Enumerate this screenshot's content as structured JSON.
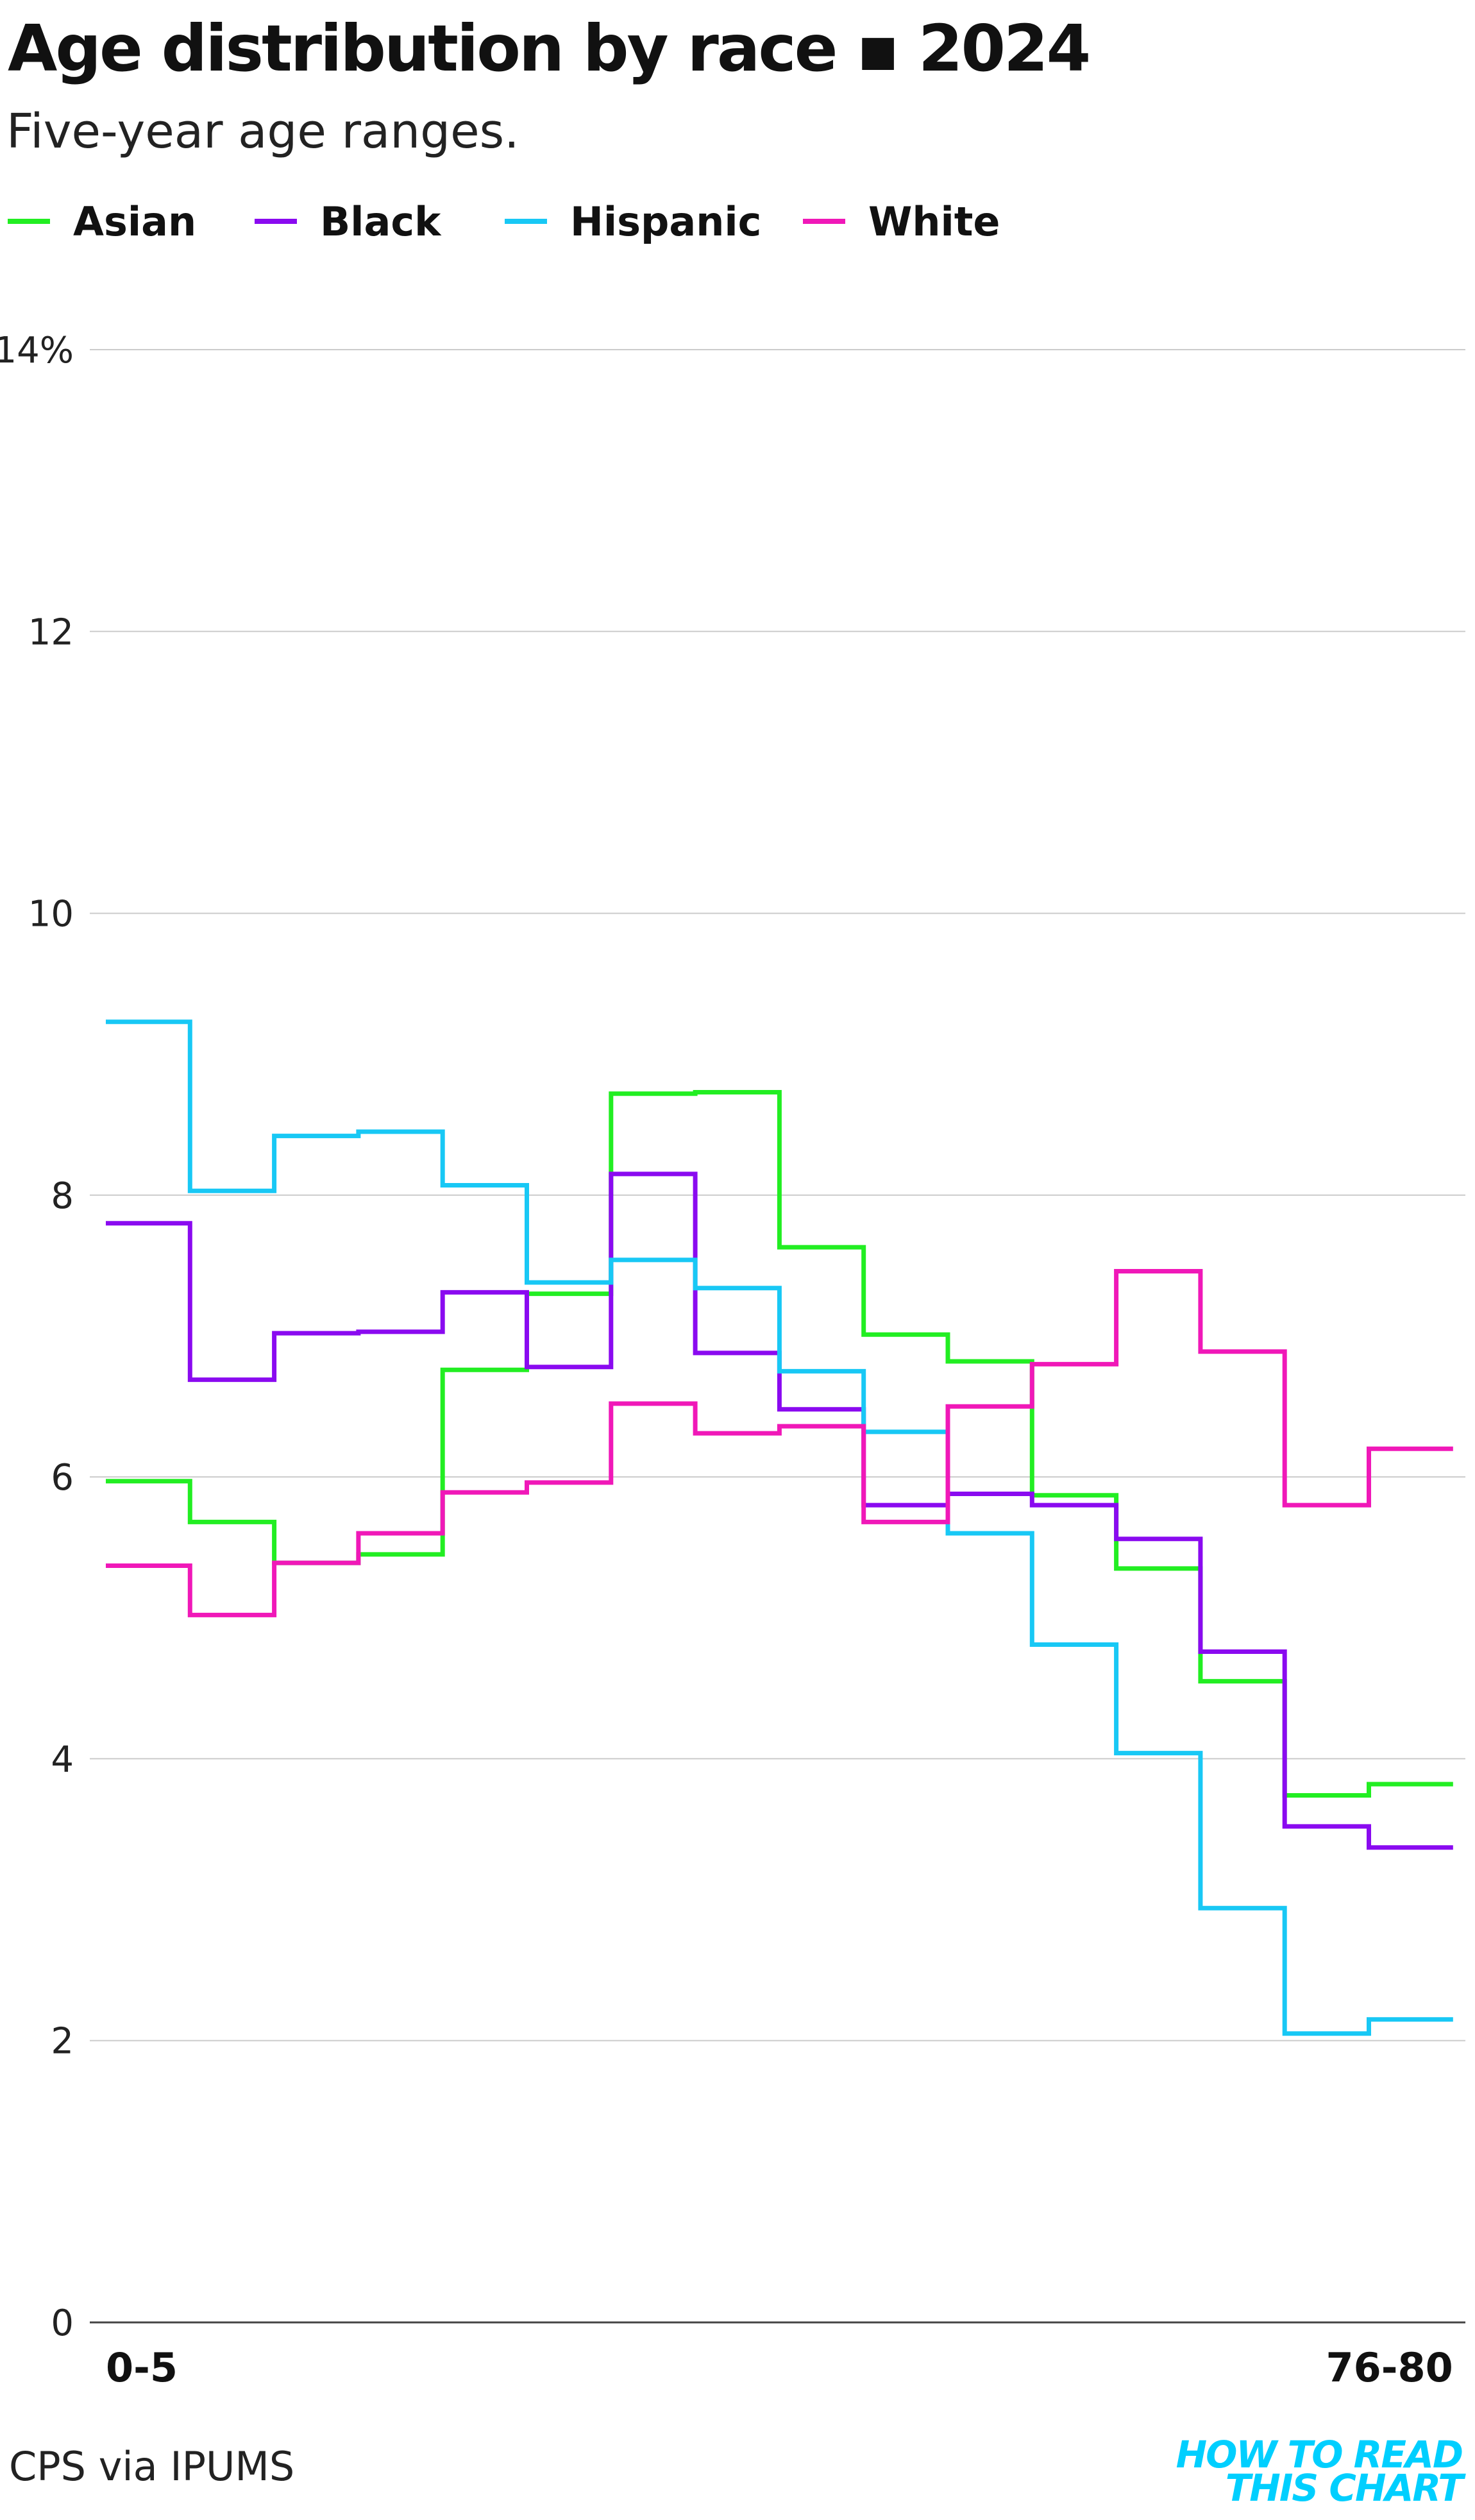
{
  "header": {
    "title": "Age distribution by race",
    "title_separator": "▪",
    "year": "2024",
    "subtitle": "Five-year age ranges."
  },
  "footer": {
    "source": "CPS via IPUMS",
    "brand_line1": "HOW TO READ",
    "brand_line2": "THIS CHART"
  },
  "chart_data": {
    "type": "line",
    "step": true,
    "title": "Age distribution by race ▪ 2024",
    "subtitle": "Five-year age ranges.",
    "ylim": [
      0,
      14
    ],
    "y_ticks": [
      0,
      2,
      4,
      6,
      8,
      10,
      12,
      14
    ],
    "y_tick_labels": [
      "0",
      "2",
      "4",
      "6",
      "8",
      "10",
      "12",
      "14%"
    ],
    "x_tick_labels": [
      "0-5",
      "76-80"
    ],
    "grid": true,
    "legend_position": "top-left",
    "series": [
      {
        "name": "Asian",
        "color": "#22ee22",
        "values": [
          5.97,
          5.68,
          5.39,
          5.45,
          6.76,
          7.3,
          8.72,
          8.73,
          7.63,
          7.01,
          6.82,
          5.87,
          5.35,
          4.55,
          3.74,
          3.82
        ]
      },
      {
        "name": "Black",
        "color": "#8a0af0",
        "values": [
          7.8,
          6.69,
          7.02,
          7.03,
          7.31,
          6.78,
          8.15,
          6.88,
          6.48,
          5.8,
          5.88,
          5.8,
          5.56,
          4.76,
          3.52,
          3.37
        ]
      },
      {
        "name": "Hispanic",
        "color": "#18c8f5",
        "values": [
          9.23,
          8.03,
          8.42,
          8.45,
          8.07,
          7.38,
          7.54,
          7.34,
          6.75,
          6.32,
          5.6,
          4.81,
          4.04,
          2.94,
          2.05,
          2.15
        ]
      },
      {
        "name": "White",
        "color": "#f018b8",
        "values": [
          5.37,
          5.02,
          5.39,
          5.6,
          5.89,
          5.96,
          6.52,
          6.31,
          6.36,
          5.68,
          6.5,
          6.8,
          7.46,
          6.89,
          5.8,
          6.2
        ]
      }
    ]
  }
}
